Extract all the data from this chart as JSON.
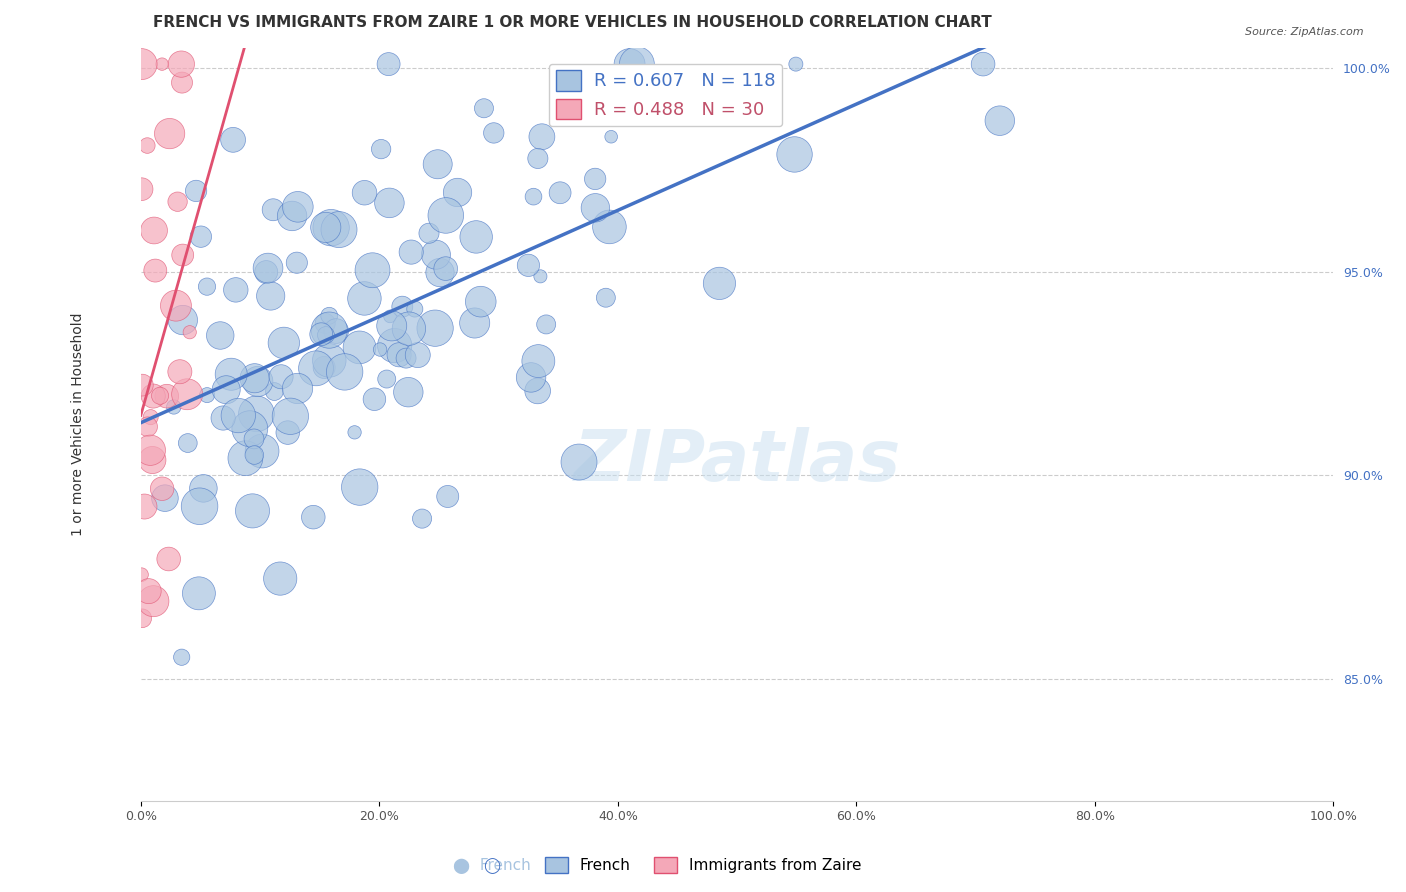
{
  "title": "FRENCH VS IMMIGRANTS FROM ZAIRE 1 OR MORE VEHICLES IN HOUSEHOLD CORRELATION CHART",
  "source": "Source: ZipAtlas.com",
  "xlabel": "",
  "ylabel": "1 or more Vehicles in Household",
  "xticklabels": [
    "0.0%",
    "20.0%",
    "40.0%",
    "60.0%",
    "80.0%",
    "100.0%"
  ],
  "yticklabels": [
    "85.0%",
    "90.0%",
    "95.0%",
    "100.0%"
  ],
  "xlim": [
    0.0,
    1.0
  ],
  "ylim": [
    0.82,
    1.005
  ],
  "legend_french": "R = 0.607   N = 118",
  "legend_zaire": "R = 0.488   N = 30",
  "french_R": 0.607,
  "french_N": 118,
  "zaire_R": 0.488,
  "zaire_N": 30,
  "french_color": "#a8c4e0",
  "zaire_color": "#f4a8b8",
  "french_line_color": "#4472c4",
  "zaire_line_color": "#e05070",
  "background_color": "#ffffff",
  "watermark": "ZIPatlas",
  "title_fontsize": 11,
  "axis_label_fontsize": 10,
  "tick_fontsize": 9,
  "legend_fontsize": 12,
  "french_seed": 42,
  "zaire_seed": 7
}
